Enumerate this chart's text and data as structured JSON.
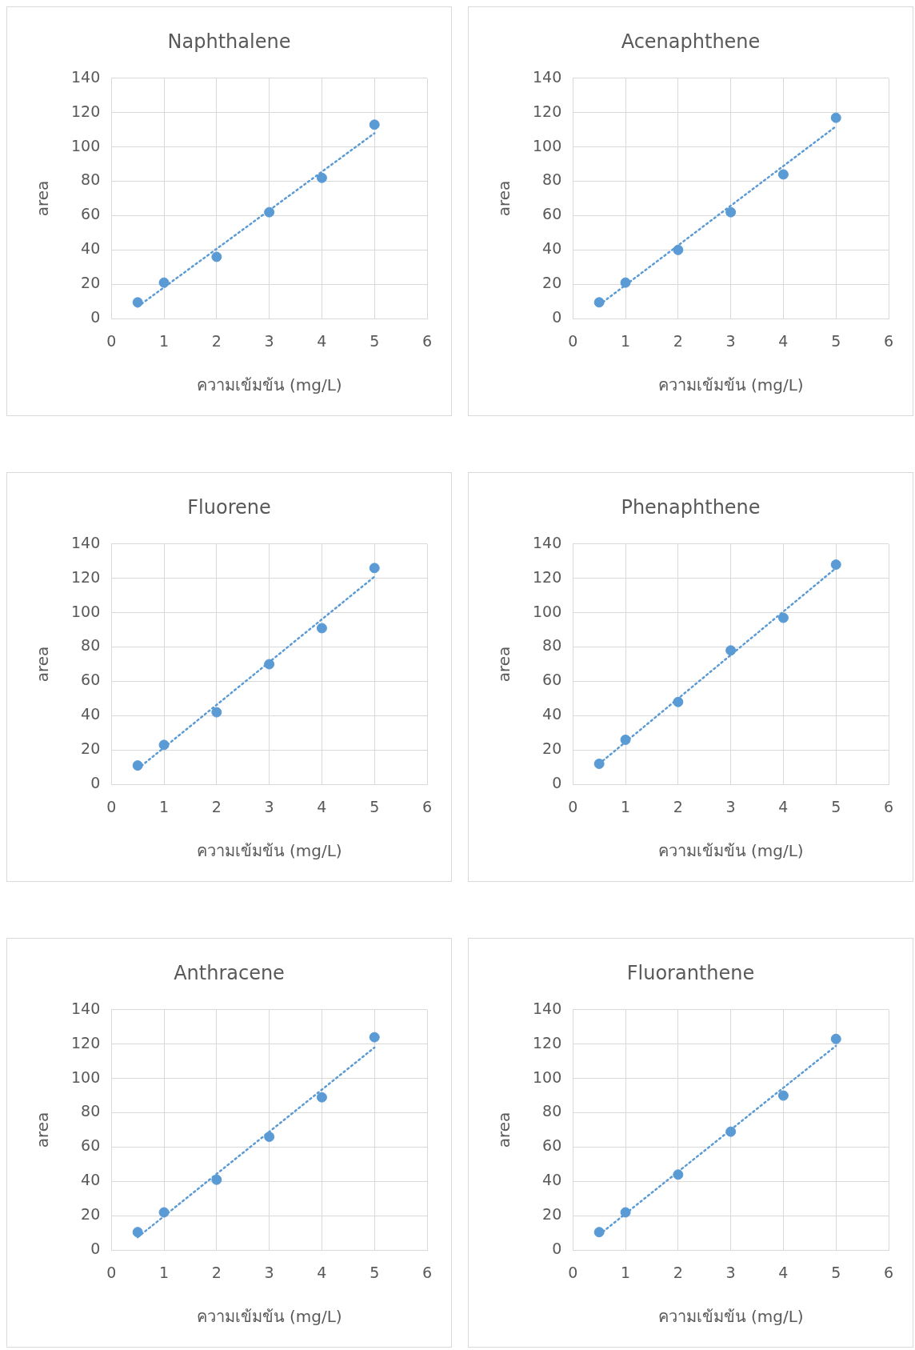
{
  "chart_data": [
    {
      "type": "scatter",
      "title": "Naphthalene",
      "xlabel": "ความเข้มข้น (mg/L)",
      "ylabel": "area",
      "xlim": [
        0,
        6
      ],
      "xticks": [
        0,
        1,
        2,
        3,
        4,
        5,
        6
      ],
      "ylim": [
        0,
        140
      ],
      "yticks": [
        0,
        20,
        40,
        60,
        80,
        100,
        120,
        140
      ],
      "grid": true,
      "marker": "circle",
      "series": [
        {
          "type": "scatter",
          "color": "#5b9bd5",
          "x": [
            0.5,
            1,
            2,
            3,
            4,
            5
          ],
          "values": [
            9.5,
            21,
            36,
            62,
            82,
            113
          ]
        },
        {
          "type": "line",
          "color": "#5b9bd5",
          "line_style": "dotted",
          "marker": "none",
          "x": [
            0.5,
            5
          ],
          "values": [
            7,
            108
          ]
        }
      ]
    },
    {
      "type": "scatter",
      "title": "Acenaphthene",
      "xlabel": "ความเข้มข้น (mg/L)",
      "ylabel": "area",
      "xlim": [
        0,
        6
      ],
      "xticks": [
        0,
        1,
        2,
        3,
        4,
        5,
        6
      ],
      "ylim": [
        0,
        140
      ],
      "yticks": [
        0,
        20,
        40,
        60,
        80,
        100,
        120,
        140
      ],
      "grid": true,
      "marker": "circle",
      "series": [
        {
          "type": "scatter",
          "color": "#5b9bd5",
          "x": [
            0.5,
            1,
            2,
            3,
            4,
            5
          ],
          "values": [
            9.5,
            21,
            40,
            62,
            84,
            117
          ]
        },
        {
          "type": "line",
          "color": "#5b9bd5",
          "line_style": "dotted",
          "marker": "none",
          "x": [
            0.5,
            5
          ],
          "values": [
            8,
            112
          ]
        }
      ]
    },
    {
      "type": "scatter",
      "title": "Fluorene",
      "xlabel": "ความเข้มข้น (mg/L)",
      "ylabel": "area",
      "xlim": [
        0,
        6
      ],
      "xticks": [
        0,
        1,
        2,
        3,
        4,
        5,
        6
      ],
      "ylim": [
        0,
        140
      ],
      "yticks": [
        0,
        20,
        40,
        60,
        80,
        100,
        120,
        140
      ],
      "grid": true,
      "marker": "circle",
      "series": [
        {
          "type": "scatter",
          "color": "#5b9bd5",
          "x": [
            0.5,
            1,
            2,
            3,
            4,
            5
          ],
          "values": [
            11,
            23,
            42,
            70,
            91,
            126
          ]
        },
        {
          "type": "line",
          "color": "#5b9bd5",
          "line_style": "dotted",
          "marker": "none",
          "x": [
            0.5,
            5
          ],
          "values": [
            9,
            121
          ]
        }
      ]
    },
    {
      "type": "scatter",
      "title": "Phenaphthene",
      "xlabel": "ความเข้มข้น (mg/L)",
      "ylabel": "area",
      "xlim": [
        0,
        6
      ],
      "xticks": [
        0,
        1,
        2,
        3,
        4,
        5,
        6
      ],
      "ylim": [
        0,
        140
      ],
      "yticks": [
        0,
        20,
        40,
        60,
        80,
        100,
        120,
        140
      ],
      "grid": true,
      "marker": "circle",
      "series": [
        {
          "type": "scatter",
          "color": "#5b9bd5",
          "x": [
            0.5,
            1,
            2,
            3,
            4,
            5
          ],
          "values": [
            12,
            26,
            48,
            78,
            97,
            128
          ]
        },
        {
          "type": "line",
          "color": "#5b9bd5",
          "line_style": "dotted",
          "marker": "none",
          "x": [
            0.5,
            5
          ],
          "values": [
            12,
            126
          ]
        }
      ]
    },
    {
      "type": "scatter",
      "title": "Anthracene",
      "xlabel": "ความเข้มข้น (mg/L)",
      "ylabel": "area",
      "xlim": [
        0,
        6
      ],
      "xticks": [
        0,
        1,
        2,
        3,
        4,
        5,
        6
      ],
      "ylim": [
        0,
        140
      ],
      "yticks": [
        0,
        20,
        40,
        60,
        80,
        100,
        120,
        140
      ],
      "grid": true,
      "marker": "circle",
      "series": [
        {
          "type": "scatter",
          "color": "#5b9bd5",
          "x": [
            0.5,
            1,
            2,
            3,
            4,
            5
          ],
          "values": [
            10.5,
            22,
            41,
            66,
            89,
            124
          ]
        },
        {
          "type": "line",
          "color": "#5b9bd5",
          "line_style": "dotted",
          "marker": "none",
          "x": [
            0.5,
            5
          ],
          "values": [
            7.5,
            118
          ]
        }
      ]
    },
    {
      "type": "scatter",
      "title": "Fluoranthene",
      "xlabel": "ความเข้มข้น (mg/L)",
      "ylabel": "area",
      "xlim": [
        0,
        6
      ],
      "xticks": [
        0,
        1,
        2,
        3,
        4,
        5,
        6
      ],
      "ylim": [
        0,
        140
      ],
      "yticks": [
        0,
        20,
        40,
        60,
        80,
        100,
        120,
        140
      ],
      "grid": true,
      "marker": "circle",
      "series": [
        {
          "type": "scatter",
          "color": "#5b9bd5",
          "x": [
            0.5,
            1,
            2,
            3,
            4,
            5
          ],
          "values": [
            10.5,
            22,
            44,
            69,
            90,
            123
          ]
        },
        {
          "type": "line",
          "color": "#5b9bd5",
          "line_style": "dotted",
          "marker": "none",
          "x": [
            0.5,
            5
          ],
          "values": [
            9,
            119
          ]
        }
      ]
    }
  ]
}
